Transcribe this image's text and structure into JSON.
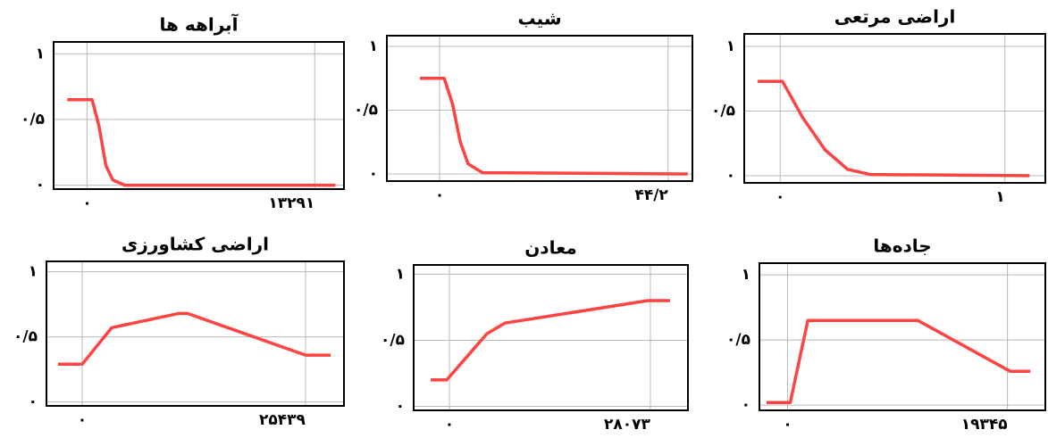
{
  "chart_data": [
    {
      "type": "line",
      "title": "آبراهه ها",
      "color": "#ff4343",
      "grid": true,
      "x": [
        -1150,
        300,
        700,
        1100,
        1500,
        2200,
        14500
      ],
      "values": [
        0.65,
        0.65,
        0.45,
        0.15,
        0.04,
        0,
        0
      ],
      "xlim": [
        -1950,
        15000
      ],
      "ylim": [
        -0.03,
        1.09
      ],
      "xticks": [
        {
          "value": 0,
          "label": "۰"
        },
        {
          "value": 13291,
          "label": "۱۳۲۹۱"
        }
      ],
      "yticks": [
        {
          "value": 0,
          "label": "۰"
        },
        {
          "value": 0.5,
          "label": "۰/۵"
        },
        {
          "value": 1,
          "label": "۱"
        }
      ]
    },
    {
      "type": "line",
      "title": "شیب",
      "color": "#ff4343",
      "grid": true,
      "x": [
        -3.8,
        0.9,
        2.5,
        4,
        5.5,
        8.3,
        48
      ],
      "values": [
        0.75,
        0.75,
        0.55,
        0.25,
        0.08,
        0.01,
        0
      ],
      "xlim": [
        -10.2,
        48.9
      ],
      "ylim": [
        -0.056,
        1.084
      ],
      "xticks": [
        {
          "value": 0,
          "label": "۰"
        },
        {
          "value": 44.2,
          "label": "۴۴/۲"
        }
      ],
      "yticks": [
        {
          "value": 0,
          "label": "۰"
        },
        {
          "value": 0.5,
          "label": "۰/۵"
        },
        {
          "value": 1,
          "label": "۱"
        }
      ]
    },
    {
      "type": "line",
      "title": "اراضی مرتعی",
      "color": "#ff4343",
      "grid": true,
      "x": [
        -0.1,
        0.01,
        0.1,
        0.2,
        0.3,
        0.4,
        1.11
      ],
      "values": [
        0.73,
        0.73,
        0.45,
        0.2,
        0.05,
        0.01,
        0
      ],
      "xlim": [
        -0.16,
        1.18
      ],
      "ylim": [
        -0.055,
        1.097
      ],
      "xticks": [
        {
          "value": 0,
          "label": "۰"
        },
        {
          "value": 1,
          "label": "۱"
        }
      ],
      "yticks": [
        {
          "value": 0,
          "label": "۰"
        },
        {
          "value": 0.5,
          "label": "۰/۵"
        },
        {
          "value": 1,
          "label": "۱"
        }
      ]
    },
    {
      "type": "line",
      "title": "اراضی کشاورزی",
      "color": "#ff4343",
      "grid": true,
      "x": [
        -2750,
        0,
        3360,
        10990,
        12000,
        25440,
        28290
      ],
      "values": [
        0.29,
        0.29,
        0.57,
        0.68,
        0.68,
        0.36,
        0.36
      ],
      "xlim": [
        -4070,
        29820
      ],
      "ylim": [
        -0.03,
        1.08
      ],
      "xticks": [
        {
          "value": 0,
          "label": "۰"
        },
        {
          "value": 25439,
          "label": "۲۵۴۳۹"
        }
      ],
      "yticks": [
        {
          "value": 0,
          "label": "۰"
        },
        {
          "value": 0.5,
          "label": "۰/۵"
        },
        {
          "value": 1,
          "label": "۱"
        }
      ]
    },
    {
      "type": "line",
      "title": "معادن",
      "color": "#ff4343",
      "grid": true,
      "x": [
        -2620,
        -370,
        5240,
        7740,
        27700,
        30830
      ],
      "values": [
        0.2,
        0.2,
        0.55,
        0.63,
        0.8,
        0.8
      ],
      "xlim": [
        -4990,
        33320
      ],
      "ylim": [
        -0.03,
        1.07
      ],
      "xticks": [
        {
          "value": 0,
          "label": "۰"
        },
        {
          "value": 28073,
          "label": "۲۸۰۷۳"
        }
      ],
      "yticks": [
        {
          "value": 0,
          "label": "۰"
        },
        {
          "value": 0.5,
          "label": "۰/۵"
        },
        {
          "value": 1,
          "label": "۱"
        }
      ]
    },
    {
      "type": "line",
      "title": "جاده‌ها",
      "color": "#ff4343",
      "grid": true,
      "x": [
        -1860,
        230,
        1780,
        11460,
        19580,
        21360
      ],
      "values": [
        0.02,
        0.02,
        0.65,
        0.65,
        0.26,
        0.26
      ],
      "xlim": [
        -2480,
        22680
      ],
      "ylim": [
        -0.04,
        1.09
      ],
      "xticks": [
        {
          "value": 0,
          "label": "۰"
        },
        {
          "value": 19345,
          "label": "۱۹۳۴۵"
        }
      ],
      "yticks": [
        {
          "value": 0,
          "label": "۰"
        },
        {
          "value": 0.5,
          "label": "۰/۵"
        },
        {
          "value": 1,
          "label": "۱"
        }
      ]
    }
  ]
}
